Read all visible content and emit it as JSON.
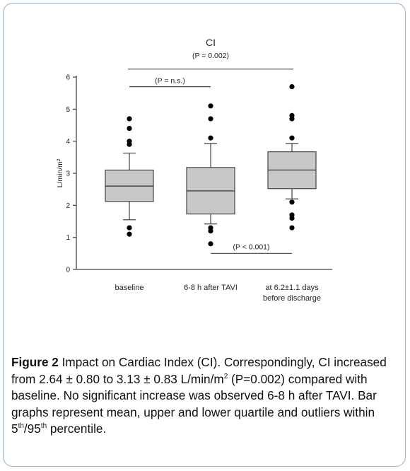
{
  "chart_data": {
    "type": "box",
    "title": "CI",
    "subtitle": "(P = 0.002)",
    "ylabel": "L/min/m²",
    "xlabel": "",
    "ylim": [
      0,
      6
    ],
    "yticks": [
      "0",
      "1",
      "2",
      "3",
      "4",
      "5",
      "6"
    ],
    "grid": false,
    "categories": [
      "baseline",
      "6-8 h after TAVI",
      "at 6.2±1.1 days before discharge"
    ],
    "category_lines": [
      [
        "baseline"
      ],
      [
        "6-8 h after TAVI"
      ],
      [
        "at 6.2±1.1 days",
        "before discharge"
      ]
    ],
    "boxes": [
      {
        "whisker_low": 1.55,
        "q1": 2.12,
        "median": 2.6,
        "q3": 3.1,
        "whisker_high": 3.63,
        "outliers": [
          1.1,
          1.3,
          3.9,
          4.0,
          4.4,
          4.7
        ]
      },
      {
        "whisker_low": 1.42,
        "q1": 1.73,
        "median": 2.45,
        "q3": 3.18,
        "whisker_high": 3.93,
        "outliers": [
          0.8,
          1.2,
          1.3,
          4.1,
          4.7,
          5.1
        ]
      },
      {
        "whisker_low": 2.2,
        "q1": 2.52,
        "median": 3.1,
        "q3": 3.67,
        "whisker_high": 3.93,
        "outliers": [
          1.3,
          1.6,
          1.7,
          2.1,
          4.1,
          4.7,
          4.8,
          5.7
        ]
      }
    ],
    "comparisons": [
      {
        "from": 0,
        "to": 2,
        "label": "(P = 0.002)",
        "y": 6.25
      },
      {
        "from": 0,
        "to": 1,
        "label": "(P = n.s.)",
        "y": 5.7
      },
      {
        "from": 1,
        "to": 2,
        "label": "(P < 0.001)",
        "y": 0.5
      }
    ],
    "colors": {
      "box_fill": "#c8c8c8",
      "stroke": "#444444",
      "points": "#000000",
      "frame": "#9ab0cc"
    }
  },
  "caption": {
    "label": "Figure 2",
    "text_1": " Impact on Cardiac Index (CI). Correspondingly, CI increased from 2.64 ± 0.80 to 3.13 ± 0.83 L/min/m",
    "sup_1": "2",
    "text_2": " (P=0.002) compared with baseline. No significant increase was observed 6-8 h after TAVI. Bar graphs represent mean, upper and lower quartile and outliers within 5",
    "sup_2": "th",
    "text_3": "/95",
    "sup_3": "th",
    "text_4": " percentile."
  }
}
